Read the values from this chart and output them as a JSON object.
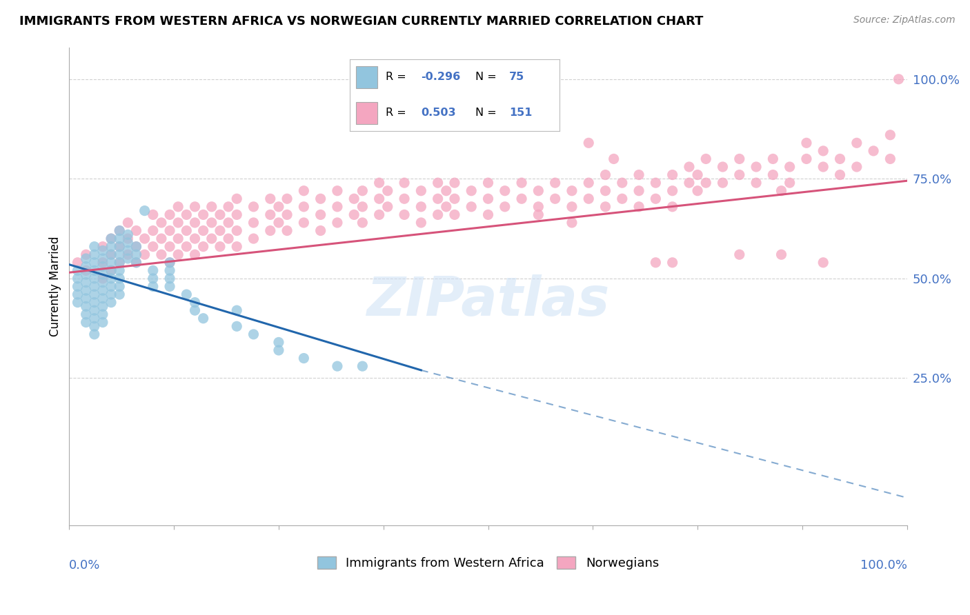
{
  "title": "IMMIGRANTS FROM WESTERN AFRICA VS NORWEGIAN CURRENTLY MARRIED CORRELATION CHART",
  "source": "Source: ZipAtlas.com",
  "ylabel": "Currently Married",
  "legend_labels": [
    "Immigrants from Western Africa",
    "Norwegians"
  ],
  "legend_r_blue": "-0.296",
  "legend_n_blue": "75",
  "legend_r_pink": "0.503",
  "legend_n_pink": "151",
  "blue_color": "#92c5de",
  "pink_color": "#f4a6c0",
  "blue_line_color": "#2166ac",
  "pink_line_color": "#d6537a",
  "blue_scatter": [
    [
      0.01,
      0.52
    ],
    [
      0.01,
      0.5
    ],
    [
      0.01,
      0.48
    ],
    [
      0.01,
      0.46
    ],
    [
      0.01,
      0.44
    ],
    [
      0.02,
      0.55
    ],
    [
      0.02,
      0.53
    ],
    [
      0.02,
      0.51
    ],
    [
      0.02,
      0.49
    ],
    [
      0.02,
      0.47
    ],
    [
      0.02,
      0.45
    ],
    [
      0.02,
      0.43
    ],
    [
      0.02,
      0.41
    ],
    [
      0.02,
      0.39
    ],
    [
      0.03,
      0.58
    ],
    [
      0.03,
      0.56
    ],
    [
      0.03,
      0.54
    ],
    [
      0.03,
      0.52
    ],
    [
      0.03,
      0.5
    ],
    [
      0.03,
      0.48
    ],
    [
      0.03,
      0.46
    ],
    [
      0.03,
      0.44
    ],
    [
      0.03,
      0.42
    ],
    [
      0.03,
      0.4
    ],
    [
      0.03,
      0.38
    ],
    [
      0.03,
      0.36
    ],
    [
      0.04,
      0.57
    ],
    [
      0.04,
      0.55
    ],
    [
      0.04,
      0.53
    ],
    [
      0.04,
      0.51
    ],
    [
      0.04,
      0.49
    ],
    [
      0.04,
      0.47
    ],
    [
      0.04,
      0.45
    ],
    [
      0.04,
      0.43
    ],
    [
      0.04,
      0.41
    ],
    [
      0.04,
      0.39
    ],
    [
      0.05,
      0.6
    ],
    [
      0.05,
      0.58
    ],
    [
      0.05,
      0.56
    ],
    [
      0.05,
      0.54
    ],
    [
      0.05,
      0.52
    ],
    [
      0.05,
      0.5
    ],
    [
      0.05,
      0.48
    ],
    [
      0.05,
      0.46
    ],
    [
      0.05,
      0.44
    ],
    [
      0.06,
      0.62
    ],
    [
      0.06,
      0.6
    ],
    [
      0.06,
      0.58
    ],
    [
      0.06,
      0.56
    ],
    [
      0.06,
      0.54
    ],
    [
      0.06,
      0.52
    ],
    [
      0.06,
      0.5
    ],
    [
      0.06,
      0.48
    ],
    [
      0.06,
      0.46
    ],
    [
      0.07,
      0.61
    ],
    [
      0.07,
      0.59
    ],
    [
      0.07,
      0.57
    ],
    [
      0.07,
      0.55
    ],
    [
      0.08,
      0.58
    ],
    [
      0.08,
      0.56
    ],
    [
      0.08,
      0.54
    ],
    [
      0.09,
      0.67
    ],
    [
      0.1,
      0.52
    ],
    [
      0.1,
      0.5
    ],
    [
      0.1,
      0.48
    ],
    [
      0.12,
      0.54
    ],
    [
      0.12,
      0.52
    ],
    [
      0.12,
      0.5
    ],
    [
      0.12,
      0.48
    ],
    [
      0.14,
      0.46
    ],
    [
      0.15,
      0.44
    ],
    [
      0.15,
      0.42
    ],
    [
      0.16,
      0.4
    ],
    [
      0.2,
      0.42
    ],
    [
      0.2,
      0.38
    ],
    [
      0.22,
      0.36
    ],
    [
      0.25,
      0.34
    ],
    [
      0.25,
      0.32
    ],
    [
      0.28,
      0.3
    ],
    [
      0.32,
      0.28
    ],
    [
      0.35,
      0.28
    ]
  ],
  "pink_scatter": [
    [
      0.01,
      0.54
    ],
    [
      0.02,
      0.52
    ],
    [
      0.02,
      0.56
    ],
    [
      0.04,
      0.54
    ],
    [
      0.04,
      0.58
    ],
    [
      0.04,
      0.5
    ],
    [
      0.05,
      0.56
    ],
    [
      0.05,
      0.6
    ],
    [
      0.05,
      0.52
    ],
    [
      0.06,
      0.58
    ],
    [
      0.06,
      0.54
    ],
    [
      0.06,
      0.62
    ],
    [
      0.07,
      0.6
    ],
    [
      0.07,
      0.56
    ],
    [
      0.07,
      0.64
    ],
    [
      0.08,
      0.58
    ],
    [
      0.08,
      0.62
    ],
    [
      0.08,
      0.54
    ],
    [
      0.09,
      0.6
    ],
    [
      0.09,
      0.56
    ],
    [
      0.1,
      0.62
    ],
    [
      0.1,
      0.58
    ],
    [
      0.1,
      0.66
    ],
    [
      0.11,
      0.6
    ],
    [
      0.11,
      0.64
    ],
    [
      0.11,
      0.56
    ],
    [
      0.12,
      0.58
    ],
    [
      0.12,
      0.62
    ],
    [
      0.12,
      0.66
    ],
    [
      0.12,
      0.54
    ],
    [
      0.13,
      0.6
    ],
    [
      0.13,
      0.64
    ],
    [
      0.13,
      0.56
    ],
    [
      0.13,
      0.68
    ],
    [
      0.14,
      0.62
    ],
    [
      0.14,
      0.58
    ],
    [
      0.14,
      0.66
    ],
    [
      0.15,
      0.6
    ],
    [
      0.15,
      0.64
    ],
    [
      0.15,
      0.56
    ],
    [
      0.15,
      0.68
    ],
    [
      0.16,
      0.62
    ],
    [
      0.16,
      0.58
    ],
    [
      0.16,
      0.66
    ],
    [
      0.17,
      0.64
    ],
    [
      0.17,
      0.6
    ],
    [
      0.17,
      0.68
    ],
    [
      0.18,
      0.62
    ],
    [
      0.18,
      0.66
    ],
    [
      0.18,
      0.58
    ],
    [
      0.19,
      0.64
    ],
    [
      0.19,
      0.6
    ],
    [
      0.19,
      0.68
    ],
    [
      0.2,
      0.62
    ],
    [
      0.2,
      0.66
    ],
    [
      0.2,
      0.7
    ],
    [
      0.2,
      0.58
    ],
    [
      0.22,
      0.64
    ],
    [
      0.22,
      0.68
    ],
    [
      0.22,
      0.6
    ],
    [
      0.24,
      0.66
    ],
    [
      0.24,
      0.62
    ],
    [
      0.24,
      0.7
    ],
    [
      0.25,
      0.68
    ],
    [
      0.25,
      0.64
    ],
    [
      0.26,
      0.66
    ],
    [
      0.26,
      0.62
    ],
    [
      0.26,
      0.7
    ],
    [
      0.28,
      0.68
    ],
    [
      0.28,
      0.64
    ],
    [
      0.28,
      0.72
    ],
    [
      0.3,
      0.66
    ],
    [
      0.3,
      0.7
    ],
    [
      0.3,
      0.62
    ],
    [
      0.32,
      0.68
    ],
    [
      0.32,
      0.64
    ],
    [
      0.32,
      0.72
    ],
    [
      0.34,
      0.7
    ],
    [
      0.34,
      0.66
    ],
    [
      0.35,
      0.68
    ],
    [
      0.35,
      0.72
    ],
    [
      0.35,
      0.64
    ],
    [
      0.37,
      0.7
    ],
    [
      0.37,
      0.66
    ],
    [
      0.37,
      0.74
    ],
    [
      0.38,
      0.68
    ],
    [
      0.38,
      0.72
    ],
    [
      0.4,
      0.7
    ],
    [
      0.4,
      0.66
    ],
    [
      0.4,
      0.74
    ],
    [
      0.42,
      0.68
    ],
    [
      0.42,
      0.72
    ],
    [
      0.42,
      0.64
    ],
    [
      0.44,
      0.7
    ],
    [
      0.44,
      0.74
    ],
    [
      0.44,
      0.66
    ],
    [
      0.45,
      0.72
    ],
    [
      0.45,
      0.68
    ],
    [
      0.46,
      0.7
    ],
    [
      0.46,
      0.74
    ],
    [
      0.46,
      0.66
    ],
    [
      0.48,
      0.68
    ],
    [
      0.48,
      0.72
    ],
    [
      0.5,
      0.7
    ],
    [
      0.5,
      0.74
    ],
    [
      0.5,
      0.66
    ],
    [
      0.52,
      0.72
    ],
    [
      0.52,
      0.68
    ],
    [
      0.54,
      0.7
    ],
    [
      0.54,
      0.74
    ],
    [
      0.56,
      0.72
    ],
    [
      0.56,
      0.68
    ],
    [
      0.56,
      0.66
    ],
    [
      0.58,
      0.7
    ],
    [
      0.58,
      0.74
    ],
    [
      0.6,
      0.72
    ],
    [
      0.6,
      0.68
    ],
    [
      0.6,
      0.64
    ],
    [
      0.62,
      0.7
    ],
    [
      0.62,
      0.74
    ],
    [
      0.64,
      0.72
    ],
    [
      0.64,
      0.76
    ],
    [
      0.64,
      0.68
    ],
    [
      0.65,
      0.8
    ],
    [
      0.66,
      0.74
    ],
    [
      0.66,
      0.7
    ],
    [
      0.68,
      0.72
    ],
    [
      0.68,
      0.76
    ],
    [
      0.68,
      0.68
    ],
    [
      0.7,
      0.74
    ],
    [
      0.7,
      0.7
    ],
    [
      0.72,
      0.76
    ],
    [
      0.72,
      0.72
    ],
    [
      0.72,
      0.68
    ],
    [
      0.74,
      0.74
    ],
    [
      0.74,
      0.78
    ],
    [
      0.75,
      0.76
    ],
    [
      0.75,
      0.72
    ],
    [
      0.76,
      0.8
    ],
    [
      0.76,
      0.74
    ],
    [
      0.78,
      0.78
    ],
    [
      0.78,
      0.74
    ],
    [
      0.8,
      0.8
    ],
    [
      0.8,
      0.76
    ],
    [
      0.82,
      0.78
    ],
    [
      0.82,
      0.74
    ],
    [
      0.84,
      0.76
    ],
    [
      0.84,
      0.8
    ],
    [
      0.85,
      0.72
    ],
    [
      0.86,
      0.78
    ],
    [
      0.86,
      0.74
    ],
    [
      0.88,
      0.8
    ],
    [
      0.88,
      0.84
    ],
    [
      0.9,
      0.82
    ],
    [
      0.9,
      0.78
    ],
    [
      0.92,
      0.8
    ],
    [
      0.92,
      0.76
    ],
    [
      0.94,
      0.84
    ],
    [
      0.94,
      0.78
    ],
    [
      0.96,
      0.82
    ],
    [
      0.98,
      0.86
    ],
    [
      0.98,
      0.8
    ],
    [
      0.99,
      1.0
    ],
    [
      0.62,
      0.84
    ],
    [
      0.7,
      0.54
    ],
    [
      0.72,
      0.54
    ],
    [
      0.8,
      0.56
    ],
    [
      0.85,
      0.56
    ],
    [
      0.9,
      0.54
    ]
  ],
  "blue_trend": [
    0.0,
    1.0,
    0.535,
    0.235
  ],
  "blue_dash": [
    0.42,
    1.0,
    0.27,
    -0.05
  ],
  "pink_trend": [
    0.0,
    1.0,
    0.515,
    0.745
  ],
  "ylim": [
    -0.12,
    1.08
  ],
  "xlim": [
    0.0,
    1.0
  ],
  "ytick_positions": [
    0.25,
    0.5,
    0.75,
    1.0
  ],
  "ytick_labels": [
    "25.0%",
    "50.0%",
    "75.0%",
    "100.0%"
  ],
  "watermark": "ZIPatlas",
  "background_color": "#ffffff",
  "grid_color": "#d0d0d0"
}
